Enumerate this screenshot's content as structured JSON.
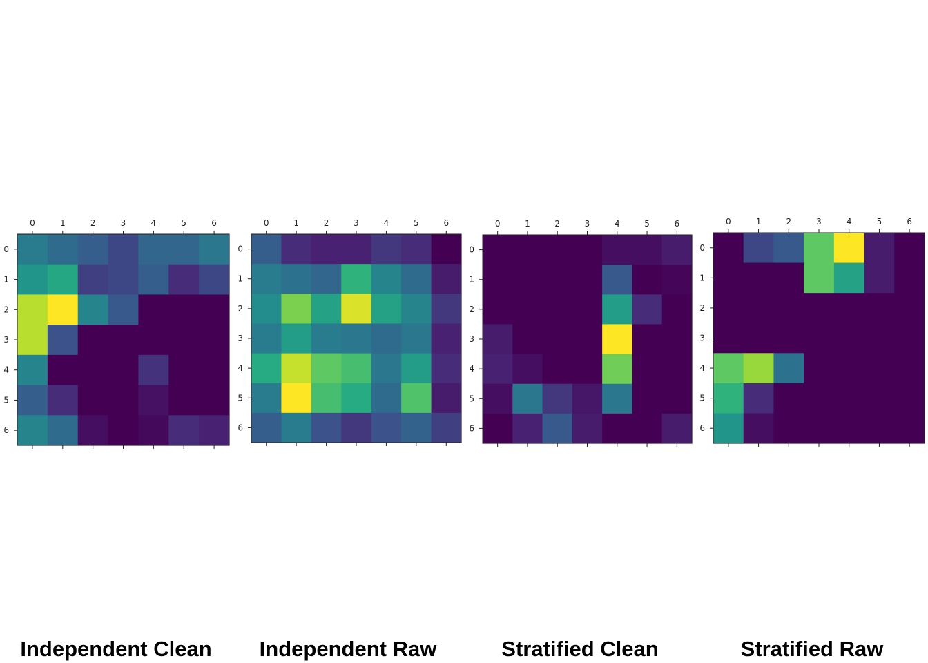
{
  "chart_data": [
    {
      "type": "heatmap",
      "title": "Independent Clean",
      "x_ticks": [
        "0",
        "1",
        "2",
        "3",
        "4",
        "5",
        "6"
      ],
      "y_ticks": [
        "0",
        "1",
        "2",
        "3",
        "4",
        "5",
        "6"
      ],
      "colormap": "viridis",
      "vmin": 0,
      "vmax": 1,
      "values": [
        [
          0.42,
          0.35,
          0.3,
          0.22,
          0.33,
          0.33,
          0.4
        ],
        [
          0.52,
          0.6,
          0.2,
          0.22,
          0.3,
          0.15,
          0.22
        ],
        [
          0.9,
          1.0,
          0.45,
          0.28,
          0.0,
          0.0,
          0.0
        ],
        [
          0.9,
          0.25,
          0.0,
          0.0,
          0.0,
          0.0,
          0.0
        ],
        [
          0.45,
          0.0,
          0.0,
          0.0,
          0.17,
          0.0,
          0.0
        ],
        [
          0.3,
          0.15,
          0.0,
          0.0,
          0.06,
          0.0,
          0.0
        ],
        [
          0.45,
          0.35,
          0.05,
          0.0,
          0.03,
          0.15,
          0.12
        ]
      ]
    },
    {
      "type": "heatmap",
      "title": "Independent Raw",
      "x_ticks": [
        "0",
        "1",
        "2",
        "3",
        "4",
        "5",
        "6"
      ],
      "y_ticks": [
        "0",
        "1",
        "2",
        "3",
        "4",
        "5",
        "6"
      ],
      "colormap": "viridis",
      "vmin": 0,
      "vmax": 1,
      "values": [
        [
          0.3,
          0.15,
          0.12,
          0.12,
          0.18,
          0.15,
          0.0
        ],
        [
          0.42,
          0.38,
          0.33,
          0.65,
          0.45,
          0.35,
          0.1
        ],
        [
          0.48,
          0.8,
          0.58,
          0.95,
          0.58,
          0.45,
          0.18
        ],
        [
          0.42,
          0.55,
          0.42,
          0.4,
          0.35,
          0.4,
          0.12
        ],
        [
          0.62,
          0.92,
          0.75,
          0.7,
          0.4,
          0.55,
          0.15
        ],
        [
          0.42,
          1.0,
          0.7,
          0.62,
          0.35,
          0.72,
          0.1
        ],
        [
          0.3,
          0.42,
          0.25,
          0.18,
          0.25,
          0.32,
          0.2
        ]
      ]
    },
    {
      "type": "heatmap",
      "title": "Stratified Clean",
      "x_ticks": [
        "0",
        "1",
        "2",
        "3",
        "4",
        "5",
        "6"
      ],
      "y_ticks": [
        "0",
        "1",
        "2",
        "3",
        "4",
        "5",
        "6"
      ],
      "colormap": "viridis",
      "vmin": 0,
      "vmax": 1,
      "values": [
        [
          0.0,
          0.0,
          0.0,
          0.0,
          0.05,
          0.05,
          0.1
        ],
        [
          0.0,
          0.0,
          0.0,
          0.0,
          0.28,
          0.0,
          0.02
        ],
        [
          0.0,
          0.0,
          0.0,
          0.0,
          0.55,
          0.15,
          0.0
        ],
        [
          0.1,
          0.0,
          0.0,
          0.0,
          1.0,
          0.0,
          0.0
        ],
        [
          0.12,
          0.05,
          0.0,
          0.0,
          0.78,
          0.0,
          0.0
        ],
        [
          0.05,
          0.4,
          0.18,
          0.08,
          0.4,
          0.0,
          0.0
        ],
        [
          0.0,
          0.12,
          0.28,
          0.1,
          0.0,
          0.0,
          0.1
        ]
      ]
    },
    {
      "type": "heatmap",
      "title": "Stratified Raw",
      "x_ticks": [
        "0",
        "1",
        "2",
        "3",
        "4",
        "5",
        "6"
      ],
      "y_ticks": [
        "0",
        "1",
        "2",
        "3",
        "4",
        "5",
        "6"
      ],
      "colormap": "viridis",
      "vmin": 0,
      "vmax": 1,
      "values": [
        [
          0.0,
          0.22,
          0.28,
          0.75,
          1.0,
          0.1,
          0.0
        ],
        [
          0.0,
          0.0,
          0.0,
          0.75,
          0.58,
          0.1,
          0.0
        ],
        [
          0.0,
          0.0,
          0.0,
          0.0,
          0.0,
          0.0,
          0.0
        ],
        [
          0.0,
          0.0,
          0.0,
          0.0,
          0.0,
          0.0,
          0.0
        ],
        [
          0.75,
          0.85,
          0.38,
          0.0,
          0.0,
          0.0,
          0.0
        ],
        [
          0.65,
          0.15,
          0.0,
          0.0,
          0.0,
          0.0,
          0.0
        ],
        [
          0.52,
          0.05,
          0.0,
          0.0,
          0.0,
          0.0,
          0.0
        ]
      ]
    }
  ]
}
